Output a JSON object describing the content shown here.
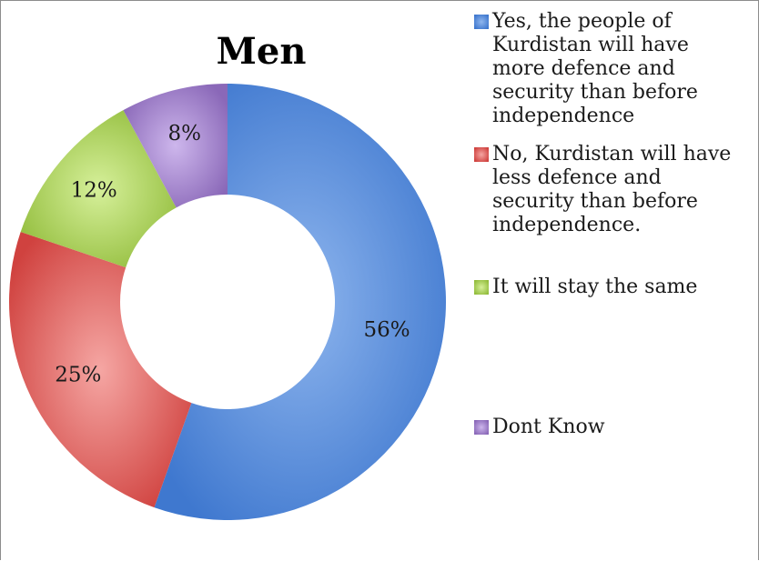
{
  "chart_data": {
    "type": "pie",
    "variant": "donut",
    "title": "Men",
    "categories": [
      "Yes, the people of Kurdistan will have more defence and security than before independence",
      "No, Kurdistan will have less  defence and security than before independence.",
      "It will stay the same",
      "Dont Know"
    ],
    "values": [
      56,
      25,
      12,
      8
    ],
    "value_labels": [
      "56%",
      "25%",
      "12%",
      "8%"
    ],
    "legend_lines": [
      [
        "Yes, the people of",
        "Kurdistan will have",
        "more defence and",
        "security than before",
        "independence"
      ],
      [
        "No, Kurdistan will have",
        "less  defence and",
        "security than before",
        "independence."
      ],
      [
        "It will stay the same"
      ],
      [
        "Dont Know"
      ]
    ],
    "colors": [
      "#4f86d8",
      "#d9504f",
      "#a3c84f",
      "#9c7cc6"
    ],
    "legend_position": "right"
  }
}
